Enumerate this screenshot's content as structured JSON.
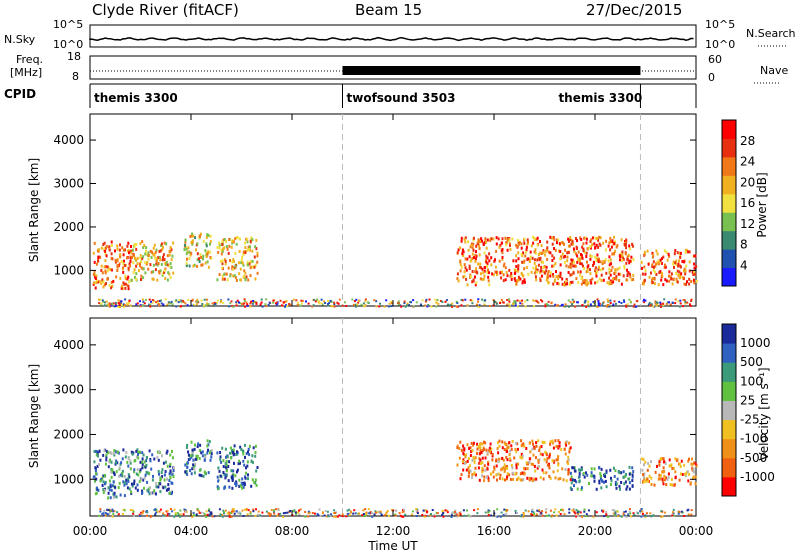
{
  "header": {
    "station": "Clyde River (fitACF)",
    "beam": "Beam 15",
    "date": "27/Dec/2015"
  },
  "strip_labels": {
    "nsky": "N.Sky",
    "freq_line1": "Freq.",
    "freq_line2": "[MHz]",
    "cpid": "CPID",
    "nsearch": "N.Search",
    "nave": "Nave",
    "nsky_ticks": [
      "10^5",
      "10^0"
    ],
    "nsearch_ticks": [
      "10^5",
      "10^0"
    ],
    "freq_ticks": [
      "18",
      "8"
    ],
    "nave_ticks": [
      "60",
      "0"
    ]
  },
  "cpid_segments": [
    {
      "label": "themis 3300",
      "start_h": 0,
      "end_h": 10.0
    },
    {
      "label": "twofsound 3503",
      "start_h": 10.0,
      "end_h": 21.8
    },
    {
      "label": "themis 3300",
      "start_h": 21.8,
      "end_h": 24
    }
  ],
  "colors": {
    "power": [
      "#1a1aff",
      "#2050b0",
      "#3a8a72",
      "#78c050",
      "#f0e040",
      "#f0b020",
      "#f07818",
      "#e83010",
      "#ff0000"
    ],
    "velocity": [
      "#1a2a9a",
      "#3060c0",
      "#3a9a7a",
      "#60c040",
      "#b8b8b8",
      "#f0c020",
      "#f09018",
      "#f06010",
      "#ff0000"
    ]
  },
  "chart_data": [
    {
      "type": "heatmap",
      "quantity": "power",
      "xlabel": "Time UT",
      "ylabel": "Slant Range [km]",
      "xlim": [
        0,
        24
      ],
      "ylim": [
        180,
        4600
      ],
      "x_tick_labels": [
        "00:00",
        "04:00",
        "08:00",
        "12:00",
        "16:00",
        "20:00",
        "00:00"
      ],
      "y_tick_labels": [
        "1000",
        "2000",
        "3000",
        "4000"
      ],
      "colorbar_label": "Power [dB]",
      "colorbar_ticks": [
        "4",
        "8",
        "12",
        "16",
        "20",
        "24",
        "28"
      ],
      "mode_change_times_h": [
        10.0,
        21.8
      ],
      "regions": [
        {
          "t0": 0.1,
          "t1": 1.6,
          "r0": 600,
          "r1": 1700,
          "level": 0.75
        },
        {
          "t0": 1.6,
          "t1": 3.3,
          "r0": 800,
          "r1": 1700,
          "level": 0.6
        },
        {
          "t0": 3.7,
          "t1": 4.8,
          "r0": 1100,
          "r1": 1900,
          "level": 0.55
        },
        {
          "t0": 5.0,
          "t1": 6.6,
          "r0": 800,
          "r1": 1800,
          "level": 0.6
        },
        {
          "t0": 14.5,
          "t1": 21.5,
          "r0": 700,
          "r1": 1800,
          "level": 0.75
        },
        {
          "t0": 21.8,
          "t1": 24,
          "r0": 700,
          "r1": 1500,
          "level": 0.75
        }
      ]
    },
    {
      "type": "heatmap",
      "quantity": "velocity",
      "xlabel": "Time UT",
      "ylabel": "Slant Range [km]",
      "xlim": [
        0,
        24
      ],
      "ylim": [
        180,
        4600
      ],
      "x_tick_labels": [
        "00:00",
        "04:00",
        "08:00",
        "12:00",
        "16:00",
        "20:00",
        "00:00"
      ],
      "y_tick_labels": [
        "1000",
        "2000",
        "3000",
        "4000"
      ],
      "colorbar_label": "Velocity [m s⁻¹]",
      "colorbar_ticks": [
        "1000",
        "500",
        "100",
        "25",
        "-25",
        "-100",
        "-500",
        "-1000"
      ],
      "mode_change_times_h": [
        10.0,
        21.8
      ],
      "regions": [
        {
          "t0": 0.1,
          "t1": 1.6,
          "r0": 600,
          "r1": 1700,
          "level": 0.25
        },
        {
          "t0": 1.6,
          "t1": 3.3,
          "r0": 700,
          "r1": 1700,
          "level": 0.25
        },
        {
          "t0": 3.7,
          "t1": 4.8,
          "r0": 1100,
          "r1": 1900,
          "level": 0.25
        },
        {
          "t0": 5.0,
          "t1": 6.6,
          "r0": 800,
          "r1": 1800,
          "level": 0.2
        },
        {
          "t0": 14.5,
          "t1": 19.0,
          "r0": 1000,
          "r1": 1900,
          "level": 0.75
        },
        {
          "t0": 19.0,
          "t1": 21.5,
          "r0": 800,
          "r1": 1300,
          "level": 0.15
        },
        {
          "t0": 21.8,
          "t1": 24,
          "r0": 900,
          "r1": 1500,
          "level": 0.75
        }
      ]
    }
  ]
}
